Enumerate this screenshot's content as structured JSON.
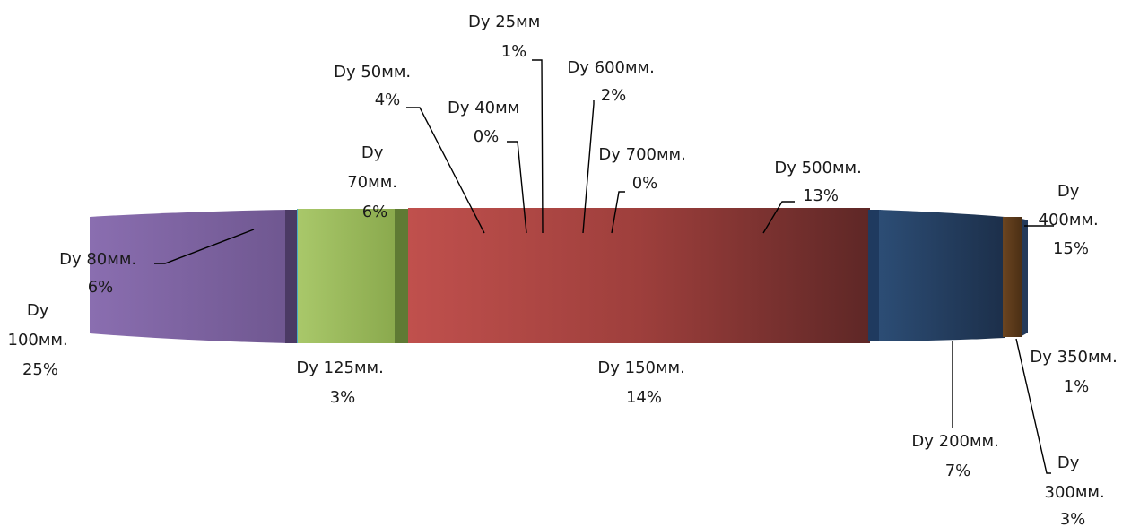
{
  "chart_data": {
    "type": "pie",
    "style": "3d-exploded-edge-view",
    "title": "",
    "legend": "none",
    "slices": [
      {
        "label": "Dy 100мм.",
        "percent": "25%",
        "value": 25,
        "color": "#8064a2",
        "label_lines": [
          "Dy",
          "100мм.",
          "25%"
        ]
      },
      {
        "label": "Dy 80мм.",
        "percent": "6%",
        "value": 6,
        "color": "#4b3a64",
        "label_lines": [
          "Dy 80мм.",
          "6%"
        ]
      },
      {
        "label": "Dy 125мм.",
        "percent": "3%",
        "value": 3,
        "color": "#4bacc6",
        "label_lines": [
          "Dy 125мм.",
          "3%"
        ]
      },
      {
        "label": "Dy 70мм.",
        "percent": "6%",
        "value": 6,
        "color": "#9bbb59",
        "label_lines": [
          "Dy",
          "70мм.",
          "6%"
        ]
      },
      {
        "label": "Dy 50мм.",
        "percent": "4%",
        "value": 4,
        "color": "#5f7a34",
        "label_lines": [
          "Dy 50мм.",
          "4%"
        ]
      },
      {
        "label": "Dy 150мм.",
        "percent": "14%",
        "value": 14,
        "color": "#c0504d",
        "label_lines": [
          "Dy 150мм.",
          "14%"
        ]
      },
      {
        "label": "Dy 40мм",
        "percent": "0%",
        "value": 0,
        "color": "#c0504d",
        "label_lines": [
          "Dy 40мм",
          "0%"
        ]
      },
      {
        "label": "Dy 25мм",
        "percent": "1%",
        "value": 1,
        "color": "#c0504d",
        "label_lines": [
          "Dy 25мм",
          "1%"
        ]
      },
      {
        "label": "Dy 600мм.",
        "percent": "2%",
        "value": 2,
        "color": "#c0504d",
        "label_lines": [
          "Dy 600мм.",
          "2%"
        ]
      },
      {
        "label": "Dy 700мм.",
        "percent": "0%",
        "value": 0,
        "color": "#c0504d",
        "label_lines": [
          "Dy 700мм.",
          "0%"
        ]
      },
      {
        "label": "Dy 500мм.",
        "percent": "13%",
        "value": 13,
        "color": "#a8403e",
        "label_lines": [
          "Dy 500мм.",
          "13%"
        ]
      },
      {
        "label": "Dy 200мм.",
        "percent": "7%",
        "value": 7,
        "color": "#1f3a5f",
        "label_lines": [
          "Dy 200мм.",
          "7%"
        ]
      },
      {
        "label": "Dy 400мм.",
        "percent": "15%",
        "value": 15,
        "color": "#2c4d75",
        "label_lines": [
          "Dy",
          "400мм.",
          "15%"
        ]
      },
      {
        "label": "Dy 350мм.",
        "percent": "1%",
        "value": 1,
        "color": "#243a5a",
        "label_lines": [
          "Dy 350мм.",
          "1%"
        ]
      },
      {
        "label": "Dy 300мм.",
        "percent": "3%",
        "value": 3,
        "color": "#5a3a1e",
        "label_lines": [
          "Dy",
          "300мм.",
          "3%"
        ]
      }
    ]
  }
}
